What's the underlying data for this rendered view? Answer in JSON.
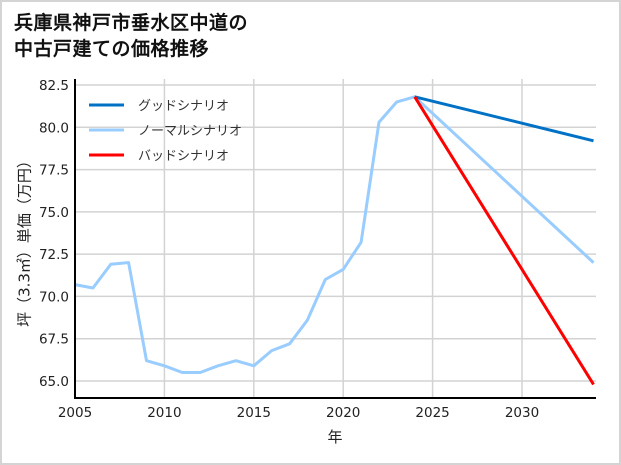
{
  "title_line1": "兵庫県神戸市垂水区中道の",
  "title_line2": "中古戸建ての価格推移",
  "chart_data": {
    "type": "line",
    "title": "兵庫県神戸市垂水区中道の中古戸建ての価格推移",
    "xlabel": "年",
    "ylabel": "坪（3.3㎡）単価（万円）",
    "xlim": [
      2005,
      2034
    ],
    "ylim": [
      64.0,
      82.5
    ],
    "xticks": [
      2005,
      2010,
      2015,
      2020,
      2025,
      2030
    ],
    "xtick_labels": [
      "2005",
      "2010",
      "2015",
      "2020",
      "2025",
      "2030"
    ],
    "yticks": [
      65.0,
      67.5,
      70.0,
      72.5,
      75.0,
      77.5,
      80.0,
      82.5
    ],
    "ytick_labels": [
      "65.0",
      "67.5",
      "70.0",
      "72.5",
      "75.0",
      "77.5",
      "80.0",
      "82.5"
    ],
    "grid": true,
    "legend_position": "upper left",
    "series": [
      {
        "name": "グッドシナリオ",
        "color": "#0072c6",
        "x": [
          2024,
          2034
        ],
        "values": [
          81.8,
          79.2
        ]
      },
      {
        "name": "ノーマルシナリオ",
        "color": "#99ccff",
        "x": [
          2005,
          2006,
          2007,
          2008,
          2009,
          2010,
          2011,
          2012,
          2013,
          2014,
          2015,
          2016,
          2017,
          2018,
          2019,
          2020,
          2021,
          2022,
          2023,
          2024,
          2034
        ],
        "values": [
          70.7,
          70.5,
          71.9,
          72.0,
          66.2,
          65.9,
          65.5,
          65.5,
          65.9,
          66.2,
          65.9,
          66.8,
          67.2,
          68.6,
          71.0,
          71.6,
          73.2,
          80.3,
          81.5,
          81.8,
          72.0
        ]
      },
      {
        "name": "バッドシナリオ",
        "color": "#ff0000",
        "x": [
          2024,
          2034
        ],
        "values": [
          81.8,
          64.8
        ]
      }
    ]
  }
}
